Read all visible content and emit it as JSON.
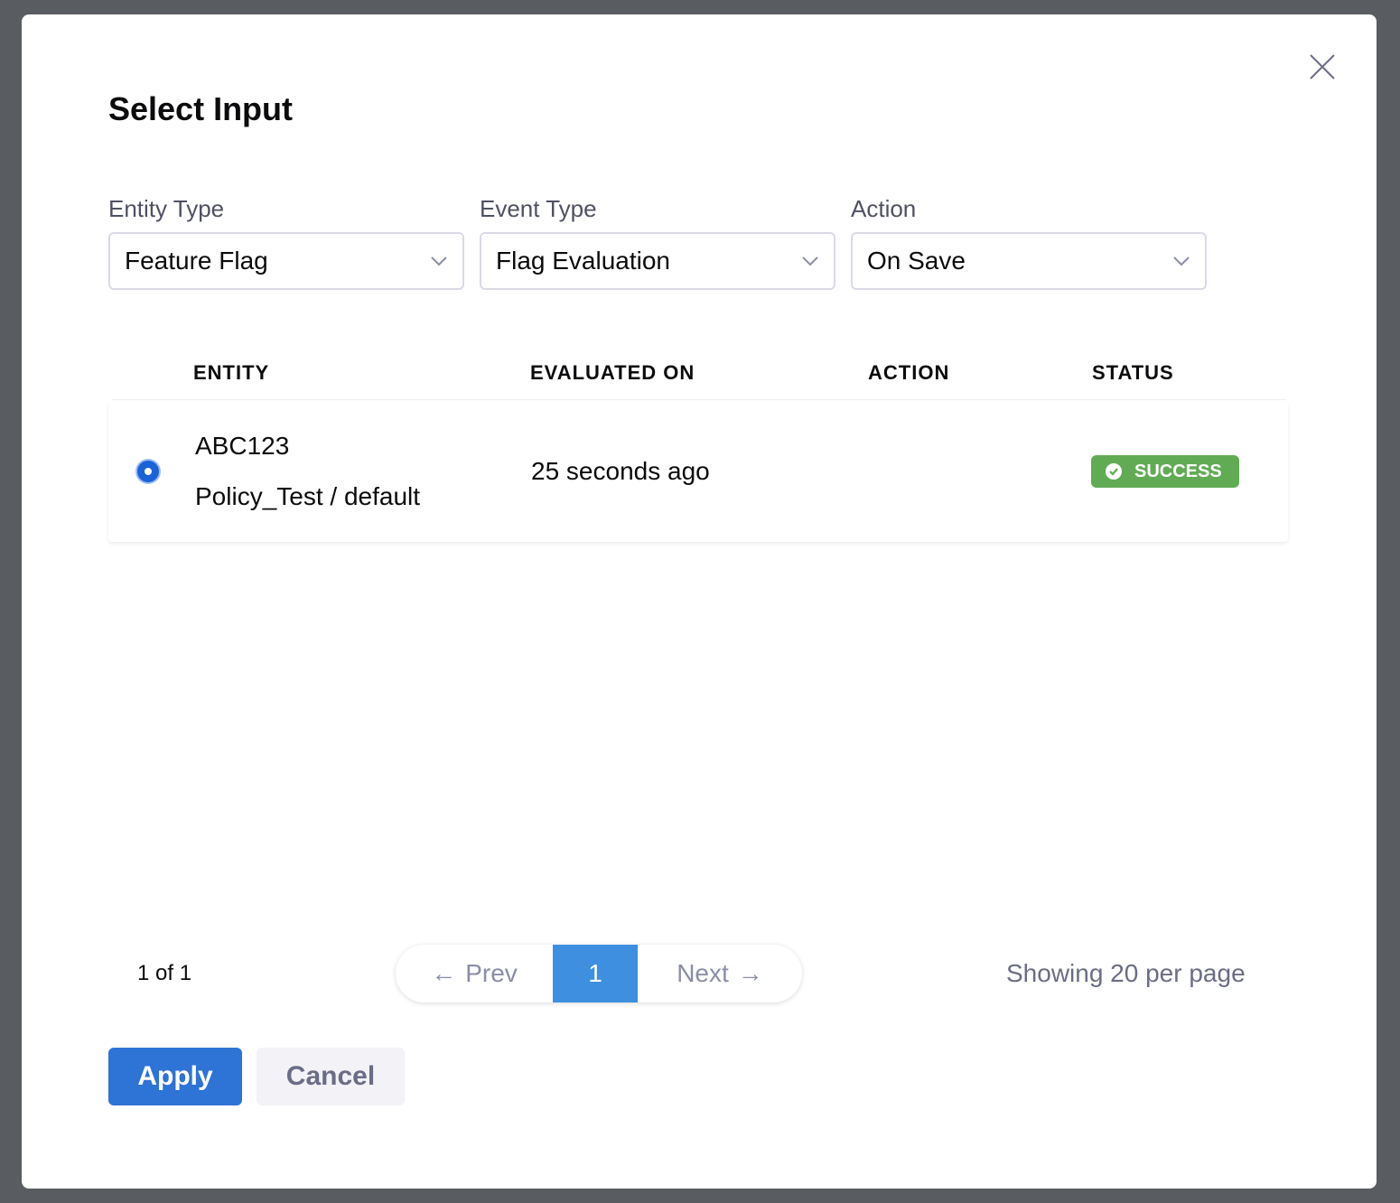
{
  "modal": {
    "title": "Select Input",
    "filters": [
      {
        "label": "Entity Type",
        "value": "Feature Flag"
      },
      {
        "label": "Event Type",
        "value": "Flag Evaluation"
      },
      {
        "label": "Action",
        "value": "On Save"
      }
    ],
    "table": {
      "columns": [
        "ENTITY",
        "EVALUATED ON",
        "ACTION",
        "STATUS"
      ],
      "rows": [
        {
          "selected": true,
          "entity_name": "ABC123",
          "entity_path": "Policy_Test / default",
          "evaluated_on": "25 seconds ago",
          "action": "",
          "status": "SUCCESS"
        }
      ]
    },
    "pagination": {
      "page_info": "1 of 1",
      "prev": "Prev",
      "current": "1",
      "next": "Next",
      "showing": "Showing 20 per page"
    },
    "apply": "Apply",
    "cancel": "Cancel"
  },
  "colors": {
    "primary": "#2e73d6",
    "success": "#61ab55",
    "overlay": "#595c60"
  }
}
